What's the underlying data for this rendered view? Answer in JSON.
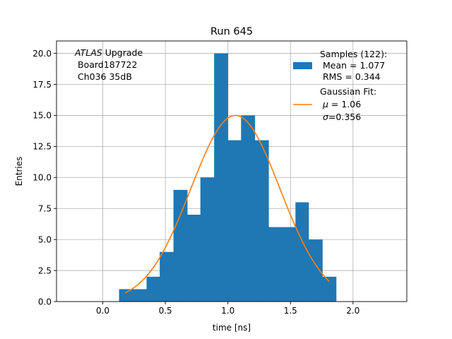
{
  "chart_data": {
    "type": "bar",
    "title": "Run 645",
    "xlabel": "time [ns]",
    "ylabel": "Entries",
    "xlim": [
      -0.37,
      2.43
    ],
    "ylim": [
      0,
      21
    ],
    "xticks": [
      0.0,
      0.5,
      1.0,
      1.5,
      2.0
    ],
    "xtick_labels": [
      "0.0",
      "0.5",
      "1.0",
      "1.5",
      "2.0"
    ],
    "yticks": [
      0.0,
      2.5,
      5.0,
      7.5,
      10.0,
      12.5,
      15.0,
      17.5,
      20.0
    ],
    "ytick_labels": [
      "0.0",
      "2.5",
      "5.0",
      "7.5",
      "10.0",
      "12.5",
      "15.0",
      "17.5",
      "20.0"
    ],
    "grid": true,
    "bar_color": "#1f77b4",
    "histogram": {
      "bin_edges": [
        0.13,
        0.24,
        0.35,
        0.455,
        0.565,
        0.675,
        0.78,
        0.89,
        1.0,
        1.105,
        1.215,
        1.325,
        1.43,
        1.54,
        1.645,
        1.755,
        1.865
      ],
      "counts": [
        1,
        1,
        2,
        4,
        9,
        7,
        10,
        20,
        13,
        15,
        13,
        6,
        6,
        8,
        5,
        2
      ]
    },
    "fit_curve": {
      "color": "#ff7f0e",
      "amplitude": 15.0,
      "mu": 1.06,
      "sigma": 0.356,
      "x_range": [
        0.18,
        1.81
      ]
    },
    "annotation": {
      "italic": "ATLAS",
      "rest": " Upgrade",
      "line2": "Board187722",
      "line3": "Ch036 35dB"
    },
    "legend": {
      "placement": "top-right",
      "samples_title": "Samples (122):",
      "samples_mean": "Mean = 1.077",
      "samples_rms": "RMS = 0.344",
      "fit_title": "Gaussian Fit:",
      "fit_mu_symbol": "μ",
      "fit_mu_value": " = 1.06",
      "fit_sigma_symbol": "σ",
      "fit_sigma_value": "=0.356"
    }
  }
}
